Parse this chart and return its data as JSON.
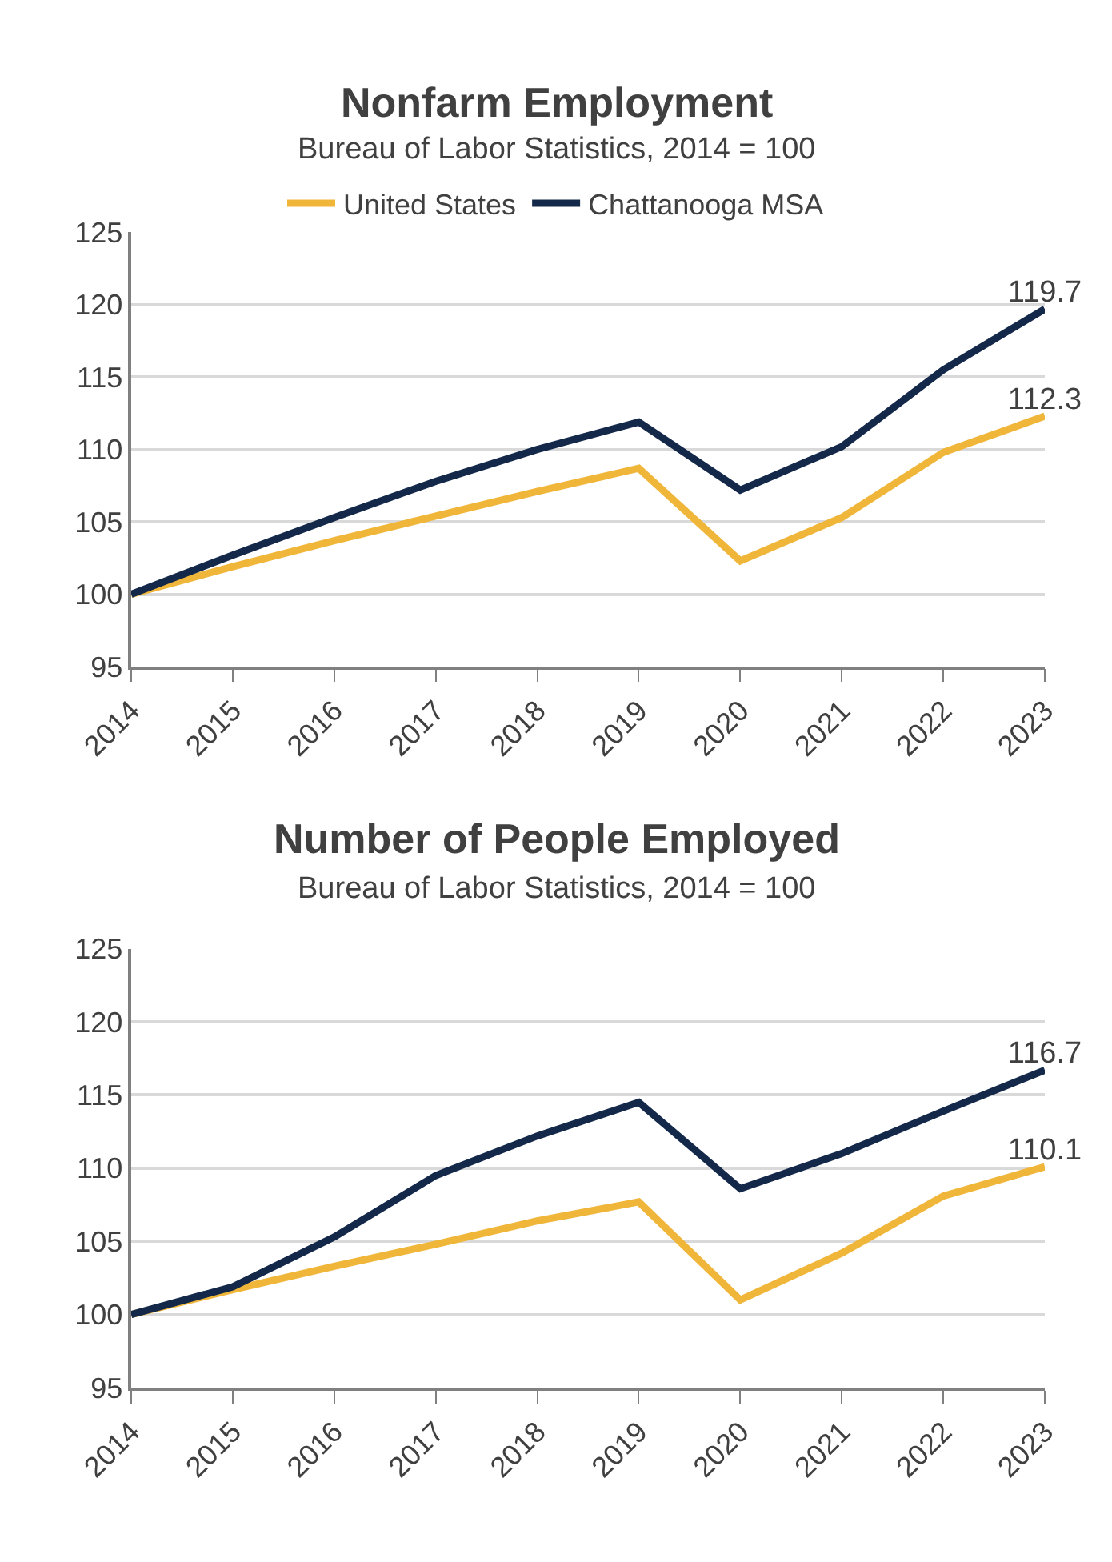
{
  "chart_data": [
    {
      "type": "line",
      "title": "Nonfarm Employment",
      "subtitle": "Bureau of Labor Statistics, 2014 = 100",
      "categories": [
        "2014",
        "2015",
        "2016",
        "2017",
        "2018",
        "2019",
        "2020",
        "2021",
        "2022",
        "2023"
      ],
      "ylim": [
        95,
        125
      ],
      "yticks": [
        95,
        100,
        105,
        110,
        115,
        120,
        125
      ],
      "grid": "y",
      "legend": "top",
      "marker": "none",
      "line_style": "solid",
      "series": [
        {
          "name": "United States",
          "color": "#f0b63a",
          "values": [
            100,
            101.9,
            103.7,
            105.4,
            107.1,
            108.7,
            102.3,
            105.3,
            109.8,
            112.3
          ],
          "value_labels": [
            null,
            null,
            null,
            null,
            null,
            null,
            null,
            null,
            null,
            "112.3"
          ]
        },
        {
          "name": "Chattanooga MSA",
          "color": "#14294a",
          "values": [
            100,
            102.7,
            105.3,
            107.8,
            110.0,
            111.9,
            107.2,
            110.2,
            115.5,
            119.7
          ],
          "value_labels": [
            null,
            null,
            null,
            null,
            null,
            null,
            null,
            null,
            null,
            "119.7"
          ]
        }
      ]
    },
    {
      "type": "line",
      "title": "Number of People Employed",
      "subtitle": "Bureau of Labor Statistics, 2014 = 100",
      "categories": [
        "2014",
        "2015",
        "2016",
        "2017",
        "2018",
        "2019",
        "2020",
        "2021",
        "2022",
        "2023"
      ],
      "ylim": [
        95,
        125
      ],
      "yticks": [
        95,
        100,
        105,
        110,
        115,
        120,
        125
      ],
      "grid": "y",
      "marker": "none",
      "line_style": "solid",
      "series": [
        {
          "color": "#f0b63a",
          "values": [
            100,
            101.7,
            103.3,
            104.8,
            106.4,
            107.7,
            101.0,
            104.2,
            108.1,
            110.1
          ],
          "value_labels": [
            null,
            null,
            null,
            null,
            null,
            null,
            null,
            null,
            null,
            "110.1"
          ]
        },
        {
          "color": "#14294a",
          "values": [
            100,
            101.9,
            105.3,
            109.5,
            112.2,
            114.5,
            108.6,
            111.0,
            113.9,
            116.7
          ],
          "value_labels": [
            null,
            null,
            null,
            null,
            null,
            null,
            null,
            null,
            null,
            "116.7"
          ]
        }
      ]
    }
  ]
}
